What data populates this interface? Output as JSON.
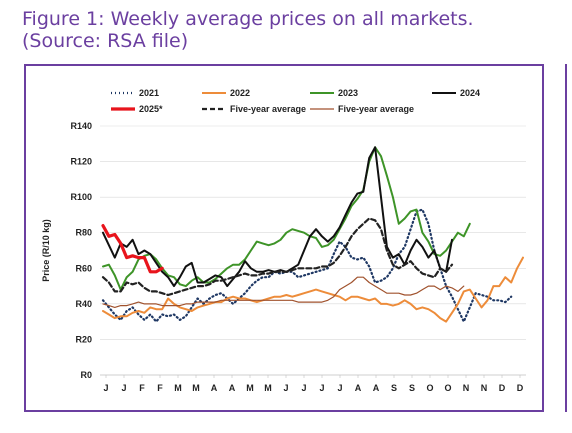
{
  "figure": {
    "title_line1": "Figure 1: Weekly average prices on all markets.",
    "title_line2": "(Source: RSA file)"
  },
  "chart_data": {
    "type": "line",
    "ylabel": "Price (R/10 kg)",
    "ylim": [
      0,
      140
    ],
    "yticks": [
      0,
      20,
      40,
      60,
      80,
      100,
      120,
      140
    ],
    "ytick_labels": [
      "R0",
      "R20",
      "R40",
      "R60",
      "R80",
      "R100",
      "R120",
      "R140"
    ],
    "xtick_labels": [
      "J",
      "J",
      "F",
      "F",
      "M",
      "M",
      "A",
      "A",
      "M",
      "M",
      "J",
      "J",
      "J",
      "J",
      "A",
      "A",
      "S",
      "S",
      "O",
      "O",
      "N",
      "N",
      "D",
      "D"
    ],
    "legend": [
      {
        "name": "2021",
        "style": "dotted",
        "color": "#1f3864"
      },
      {
        "name": "2022",
        "style": "solid",
        "color": "#ed8c3a"
      },
      {
        "name": "2023",
        "style": "solid",
        "color": "#3e9428"
      },
      {
        "name": "2024",
        "style": "solid",
        "color": "#111111"
      },
      {
        "name": "2025*",
        "style": "solid-thick",
        "color": "#e8141c"
      },
      {
        "name": "Five-year average",
        "style": "dashed",
        "color": "#222222"
      },
      {
        "name": "Five-year average",
        "style": "solid-thin",
        "color": "#a0522d"
      }
    ],
    "series": [
      {
        "name": "2021",
        "color": "#1f3864",
        "values": [
          42,
          38,
          34,
          31,
          36,
          38,
          34,
          31,
          34,
          30,
          34,
          33,
          34,
          31,
          33,
          38,
          43,
          40,
          43,
          45,
          46,
          43,
          40,
          43,
          46,
          50,
          53,
          55,
          55,
          58,
          57,
          58,
          58,
          55,
          56,
          57,
          58,
          59,
          60,
          68,
          75,
          72,
          66,
          65,
          66,
          61,
          52,
          53,
          55,
          60,
          68,
          72,
          82,
          92,
          93,
          85,
          70,
          60,
          50,
          44,
          37,
          30,
          38,
          46,
          45,
          44,
          42,
          42,
          41,
          44
        ]
      },
      {
        "name": "2022",
        "color": "#ed8c3a",
        "values": [
          36,
          34,
          32,
          33,
          33,
          35,
          36,
          35,
          38,
          37,
          37,
          43,
          40,
          38,
          37,
          36,
          38,
          39,
          40,
          41,
          41,
          43,
          44,
          43,
          43,
          42,
          41,
          42,
          43,
          44,
          44,
          45,
          44,
          45,
          46,
          47,
          48,
          47,
          46,
          45,
          44,
          42,
          44,
          44,
          43,
          42,
          43,
          40,
          40,
          39,
          40,
          42,
          40,
          37,
          38,
          37,
          35,
          32,
          30,
          35,
          40,
          47,
          48,
          43,
          38,
          42,
          50,
          50,
          55,
          52,
          60,
          66
        ]
      },
      {
        "name": "2023",
        "color": "#3e9428",
        "values": [
          61,
          62,
          56,
          48,
          55,
          58,
          65,
          67,
          68,
          65,
          60,
          56,
          55,
          51,
          50,
          53,
          55,
          52,
          52,
          54,
          57,
          60,
          62,
          62,
          65,
          70,
          75,
          74,
          73,
          74,
          76,
          80,
          82,
          81,
          80,
          78,
          77,
          72,
          73,
          76,
          82,
          88,
          95,
          99,
          104,
          120,
          128,
          123,
          112,
          100,
          85,
          88,
          92,
          93,
          80,
          75,
          68,
          67,
          70,
          75,
          80,
          78,
          85
        ]
      },
      {
        "name": "2024",
        "color": "#111111",
        "values": [
          80,
          73,
          66,
          74,
          72,
          76,
          68,
          70,
          68,
          63,
          58,
          55,
          50,
          55,
          61,
          63,
          52,
          52,
          54,
          56,
          55,
          50,
          54,
          58,
          64,
          60,
          58,
          58,
          59,
          58,
          59,
          58,
          60,
          62,
          70,
          78,
          82,
          78,
          75,
          78,
          83,
          90,
          97,
          102,
          103,
          122,
          128,
          100,
          72,
          66,
          68,
          62,
          70,
          76,
          72,
          66,
          70,
          60,
          58,
          76
        ]
      },
      {
        "name": "2025*",
        "color": "#e8141c",
        "values": [
          84,
          78,
          79,
          74,
          66,
          67,
          66,
          66,
          58,
          58,
          60
        ]
      },
      {
        "name": "Five-year average",
        "color": "#222222",
        "values": [
          55,
          52,
          47,
          47,
          52,
          51,
          52,
          49,
          47,
          47,
          46,
          45,
          46,
          47,
          48,
          49,
          50,
          50,
          51,
          53,
          53,
          54,
          55,
          56,
          57,
          56,
          56,
          57,
          57,
          58,
          58,
          58,
          59,
          60,
          60,
          60,
          60,
          61,
          61,
          63,
          67,
          72,
          78,
          82,
          85,
          88,
          87,
          82,
          70,
          62,
          60,
          62,
          64,
          60,
          57,
          56,
          55,
          60,
          58,
          62
        ]
      },
      {
        "name": "Five-year average",
        "color": "#a0522d",
        "values": [
          40,
          39,
          38,
          39,
          39,
          40,
          41,
          40,
          40,
          40,
          39,
          39,
          39,
          39,
          40,
          40,
          41,
          41,
          41,
          41,
          42,
          42,
          42,
          42,
          42,
          42,
          42,
          42,
          42,
          42,
          42,
          42,
          42,
          41,
          41,
          41,
          41,
          41,
          42,
          44,
          48,
          50,
          52,
          55,
          55,
          52,
          50,
          48,
          46,
          46,
          46,
          45,
          45,
          46,
          48,
          50,
          50,
          48,
          50,
          49,
          47,
          50
        ]
      }
    ]
  }
}
